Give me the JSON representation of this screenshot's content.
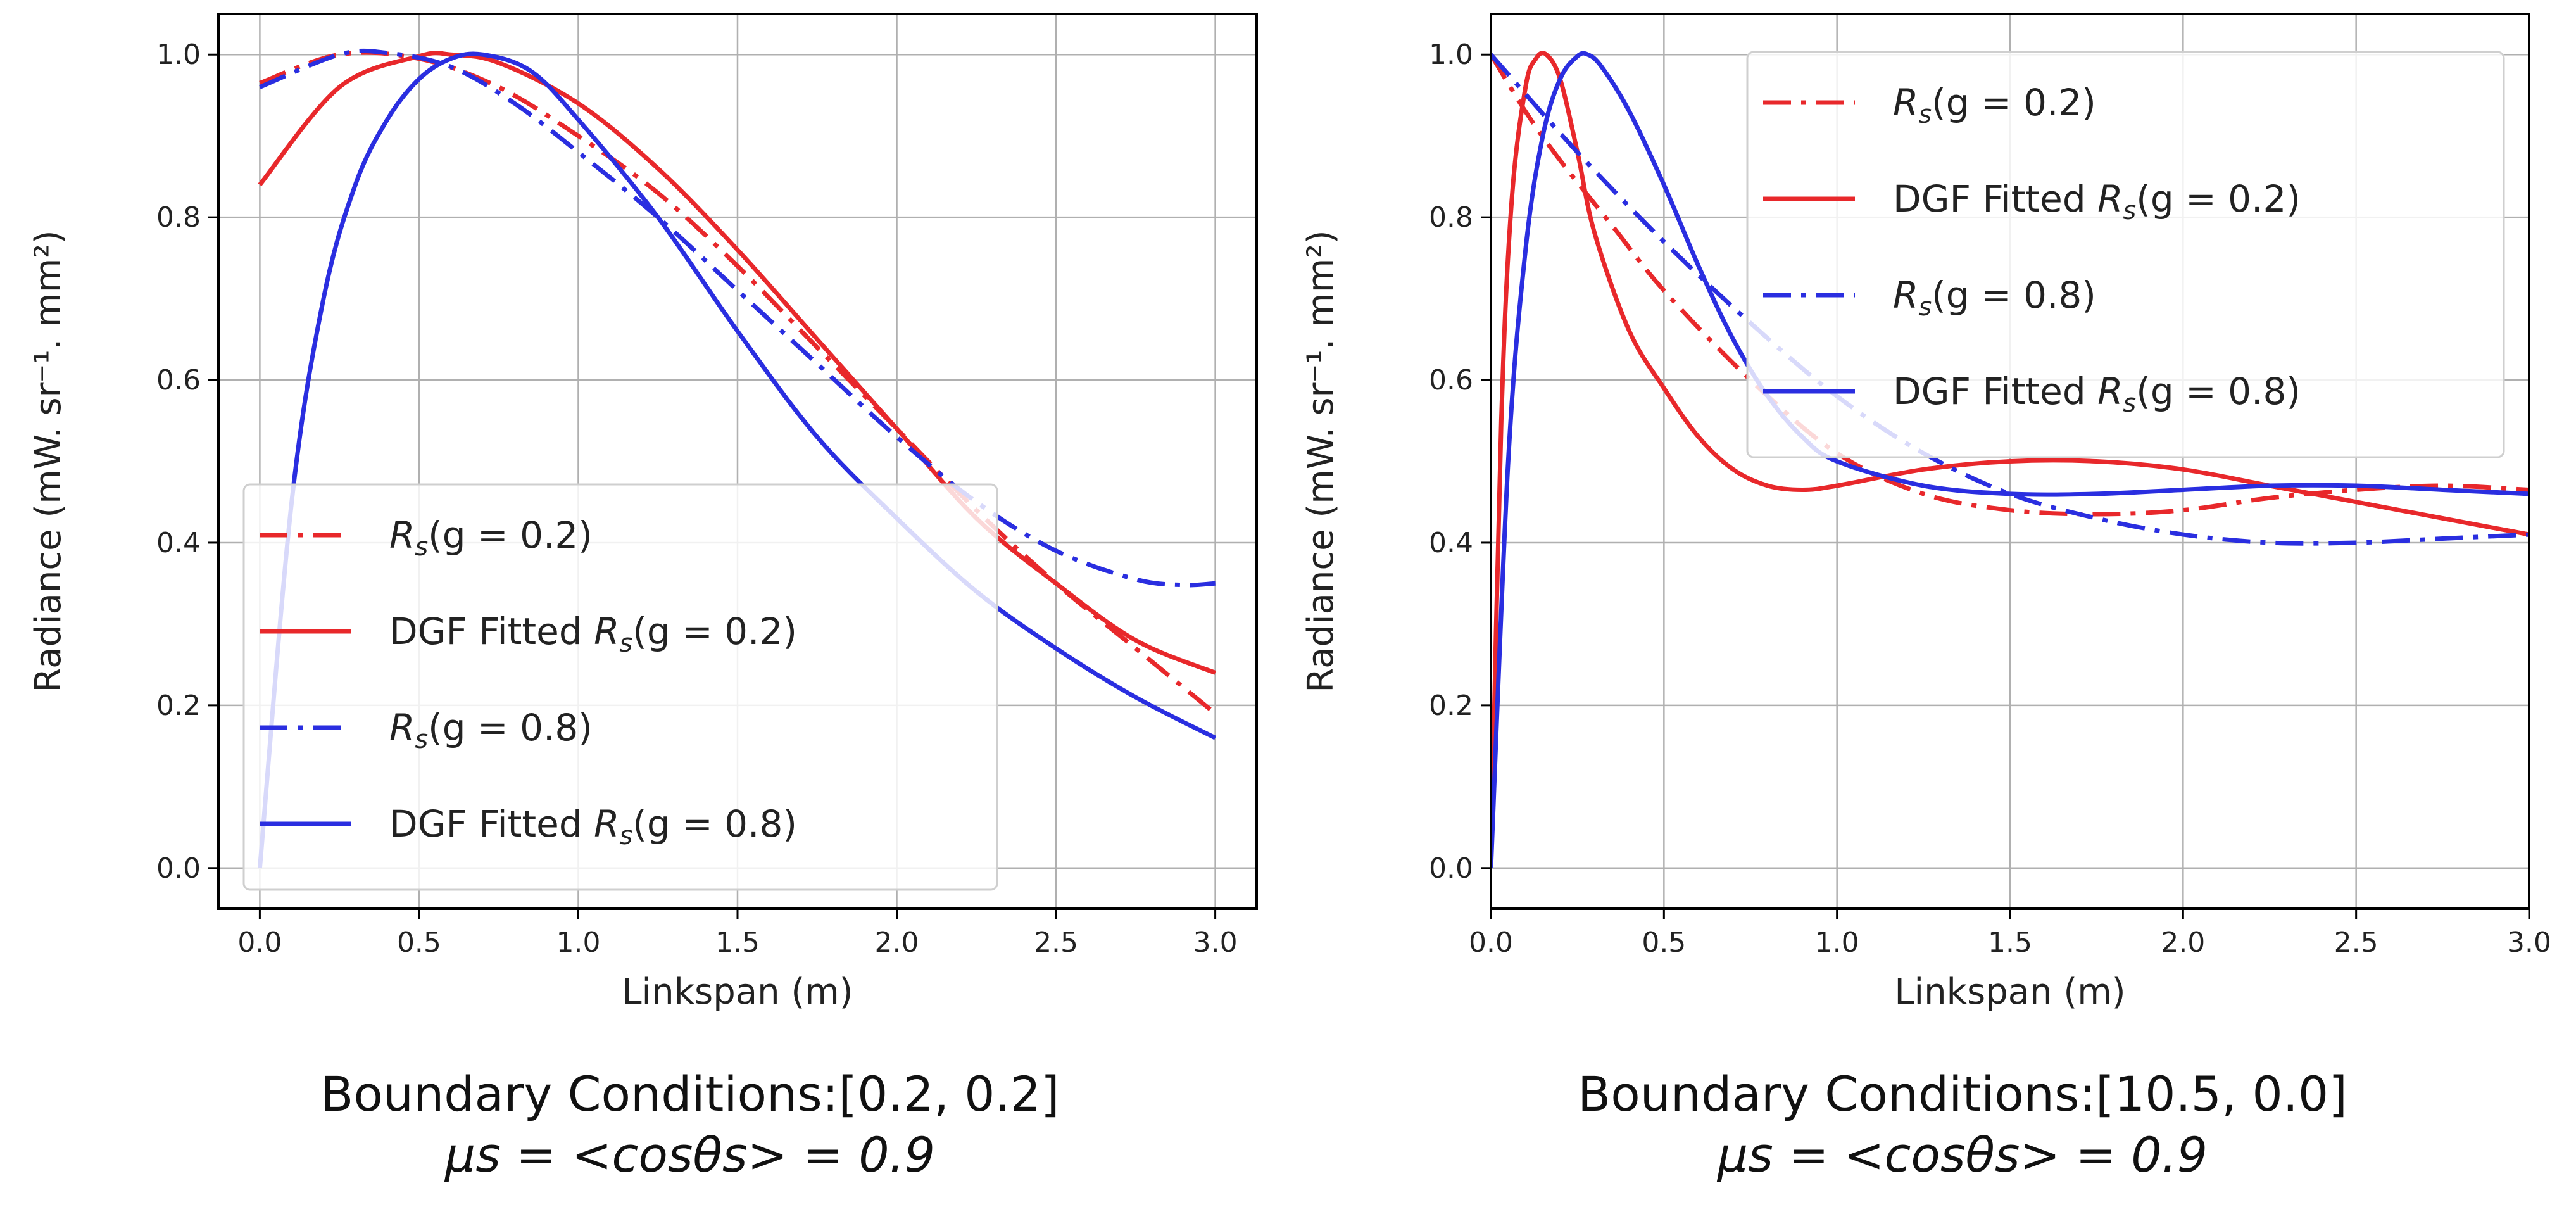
{
  "chart_data": [
    {
      "type": "line",
      "xlabel": "Linkspan (m)",
      "ylabel": "Radiance (mW. sr⁻¹. mm²)",
      "xlim": [
        -0.13,
        3.13
      ],
      "ylim": [
        -0.05,
        1.05
      ],
      "xticks": [
        "0.0",
        "0.5",
        "1.0",
        "1.5",
        "2.0",
        "2.5",
        "3.0"
      ],
      "yticks": [
        "0.0",
        "0.2",
        "0.4",
        "0.6",
        "0.8",
        "1.0"
      ],
      "grid": true,
      "legend_position": "lower-left",
      "caption_line1": "Boundary Conditions:[0.2, 0.2]",
      "caption_line2": "μs = <cosθs> = 0.9",
      "series": [
        {
          "name": "Rs(g = 0.2)",
          "label_prefix": "",
          "label_mid": "(g = 0.2)",
          "color": "#e8282b",
          "style": "dashdot",
          "x": [
            0,
            0.25,
            0.5,
            0.75,
            1.0,
            1.25,
            1.5,
            1.75,
            2.0,
            2.25,
            2.5,
            2.75,
            3.0
          ],
          "y": [
            0.965,
            1.0,
            0.995,
            0.96,
            0.9,
            0.83,
            0.74,
            0.64,
            0.54,
            0.44,
            0.35,
            0.27,
            0.19
          ]
        },
        {
          "name": "DGF Fitted Rs(g = 0.2)",
          "label_prefix": "DGF Fitted ",
          "label_mid": "(g = 0.2)",
          "color": "#e8282b",
          "style": "solid",
          "x": [
            0,
            0.25,
            0.5,
            0.6,
            0.75,
            1.0,
            1.25,
            1.5,
            1.75,
            2.0,
            2.25,
            2.5,
            2.75,
            3.0
          ],
          "y": [
            0.84,
            0.96,
            0.998,
            1.0,
            0.99,
            0.94,
            0.86,
            0.76,
            0.65,
            0.54,
            0.43,
            0.35,
            0.28,
            0.24
          ]
        },
        {
          "name": "Rs(g = 0.8)",
          "label_prefix": "",
          "label_mid": "(g = 0.8)",
          "color": "#2a2ee0",
          "style": "dashdot",
          "x": [
            0,
            0.25,
            0.4,
            0.6,
            0.8,
            1.0,
            1.25,
            1.5,
            1.75,
            2.0,
            2.25,
            2.5,
            2.75,
            2.9,
            3.0
          ],
          "y": [
            0.96,
            1.0,
            1.002,
            0.985,
            0.94,
            0.88,
            0.8,
            0.71,
            0.62,
            0.53,
            0.45,
            0.39,
            0.355,
            0.348,
            0.35
          ]
        },
        {
          "name": "DGF Fitted Rs(g = 0.8)",
          "label_prefix": "DGF Fitted ",
          "label_mid": "(g = 0.8)",
          "color": "#2a2ee0",
          "style": "solid",
          "x": [
            0,
            0.1,
            0.2,
            0.3,
            0.4,
            0.5,
            0.6,
            0.7,
            0.85,
            1.0,
            1.25,
            1.5,
            1.75,
            2.0,
            2.25,
            2.5,
            2.75,
            3.0
          ],
          "y": [
            0.0,
            0.45,
            0.7,
            0.84,
            0.92,
            0.97,
            0.995,
            1.0,
            0.98,
            0.92,
            0.8,
            0.66,
            0.53,
            0.43,
            0.34,
            0.27,
            0.21,
            0.16
          ]
        }
      ]
    },
    {
      "type": "line",
      "xlabel": "Linkspan (m)",
      "ylabel": "Radiance (mW. sr⁻¹. mm²)",
      "xlim": [
        0.0,
        3.0
      ],
      "ylim": [
        -0.05,
        1.05
      ],
      "xticks": [
        "0.0",
        "0.5",
        "1.0",
        "1.5",
        "2.0",
        "2.5",
        "3.0"
      ],
      "yticks": [
        "0.0",
        "0.2",
        "0.4",
        "0.6",
        "0.8",
        "1.0"
      ],
      "grid": true,
      "legend_position": "upper-right",
      "caption_line1": "Boundary Conditions:[10.5, 0.0]",
      "caption_line2": "μs = <cosθs> = 0.9",
      "series": [
        {
          "name": "Rs(g = 0.2)",
          "label_prefix": "",
          "label_mid": "(g = 0.2)",
          "color": "#e8282b",
          "style": "dashdot",
          "x": [
            0,
            0.1,
            0.2,
            0.35,
            0.5,
            0.75,
            1.0,
            1.25,
            1.5,
            1.75,
            2.0,
            2.25,
            2.5,
            2.75,
            3.0
          ],
          "y": [
            1.0,
            0.93,
            0.87,
            0.79,
            0.71,
            0.6,
            0.51,
            0.46,
            0.44,
            0.435,
            0.44,
            0.455,
            0.465,
            0.47,
            0.465
          ]
        },
        {
          "name": "DGF Fitted Rs(g = 0.2)",
          "label_prefix": "DGF Fitted ",
          "label_mid": "(g = 0.2)",
          "color": "#e8282b",
          "style": "solid",
          "x": [
            0,
            0.03,
            0.06,
            0.1,
            0.13,
            0.16,
            0.2,
            0.25,
            0.3,
            0.4,
            0.5,
            0.6,
            0.7,
            0.8,
            0.9,
            1.0,
            1.25,
            1.5,
            1.75,
            2.0,
            2.25,
            2.5,
            2.75,
            3.0
          ],
          "y": [
            0.0,
            0.55,
            0.82,
            0.96,
            0.995,
            1.0,
            0.97,
            0.88,
            0.78,
            0.66,
            0.59,
            0.53,
            0.49,
            0.47,
            0.465,
            0.47,
            0.49,
            0.5,
            0.5,
            0.49,
            0.47,
            0.45,
            0.43,
            0.41
          ]
        },
        {
          "name": "Rs(g = 0.8)",
          "label_prefix": "",
          "label_mid": "(g = 0.8)",
          "color": "#2a2ee0",
          "style": "dashdot",
          "x": [
            0,
            0.25,
            0.5,
            0.75,
            1.0,
            1.25,
            1.5,
            1.75,
            2.0,
            2.25,
            2.5,
            2.75,
            3.0
          ],
          "y": [
            1.0,
            0.88,
            0.77,
            0.67,
            0.58,
            0.51,
            0.46,
            0.43,
            0.41,
            0.4,
            0.4,
            0.405,
            0.41
          ]
        },
        {
          "name": "DGF Fitted Rs(g = 0.8)",
          "label_prefix": "DGF Fitted ",
          "label_mid": "(g = 0.8)",
          "color": "#2a2ee0",
          "style": "solid",
          "x": [
            0,
            0.05,
            0.1,
            0.15,
            0.2,
            0.25,
            0.28,
            0.32,
            0.4,
            0.5,
            0.6,
            0.7,
            0.8,
            0.9,
            1.0,
            1.25,
            1.5,
            1.75,
            2.0,
            2.25,
            2.5,
            2.75,
            3.0
          ],
          "y": [
            0.0,
            0.5,
            0.76,
            0.9,
            0.97,
            0.998,
            1.0,
            0.985,
            0.93,
            0.84,
            0.74,
            0.65,
            0.58,
            0.53,
            0.5,
            0.47,
            0.46,
            0.46,
            0.465,
            0.47,
            0.47,
            0.465,
            0.46
          ]
        }
      ]
    }
  ]
}
